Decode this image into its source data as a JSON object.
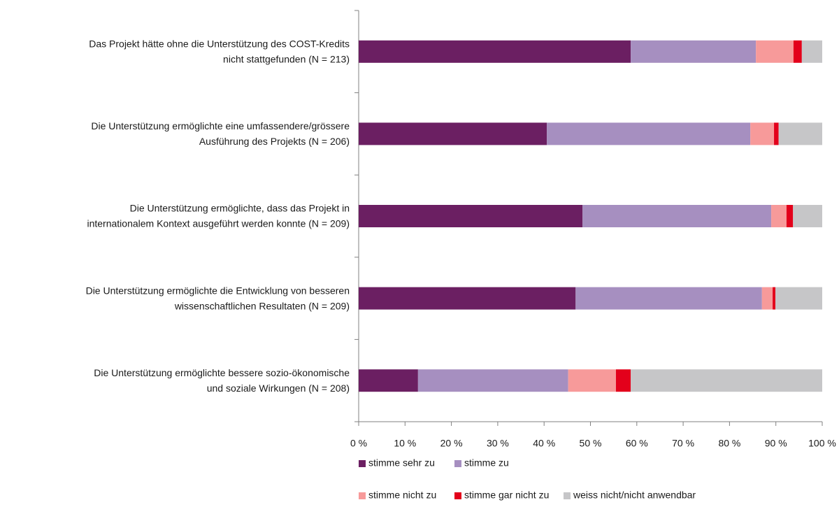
{
  "chart_data": {
    "type": "stacked-bar-horizontal",
    "categories": [
      [
        "Das Projekt hätte ohne die Unterstützung des COST-Kredits",
        "nicht stattgefunden (N = 213)"
      ],
      [
        "Die Unterstützung ermöglichte eine umfassendere/grössere",
        "Ausführung des Projekts (N = 206)"
      ],
      [
        "Die Unterstützung ermöglichte, dass das Projekt in",
        "internationalem Kontext ausgeführt werden konnte (N = 209)"
      ],
      [
        "Die Unterstützung ermöglichte die Entwicklung von besseren",
        "wissenschaftlichen Resultaten (N = 209)"
      ],
      [
        "Die Unterstützung ermöglichte bessere sozio-ökonomische",
        "und soziale Wirkungen (N = 208)"
      ]
    ],
    "series": [
      {
        "name": "stimme sehr zu",
        "color": "#6b1f62",
        "values": [
          58.7,
          40.6,
          48.3,
          46.8,
          12.8
        ]
      },
      {
        "name": "stimme zu",
        "color": "#a68fc0",
        "values": [
          27.0,
          43.9,
          40.7,
          40.2,
          32.4
        ]
      },
      {
        "name": "stimme nicht zu",
        "color": "#f79a9a",
        "values": [
          8.1,
          5.1,
          3.3,
          2.3,
          10.3
        ]
      },
      {
        "name": "stimme gar nicht zu",
        "color": "#e3001b",
        "values": [
          1.8,
          1.0,
          1.4,
          0.6,
          3.2
        ]
      },
      {
        "name": "weiss nicht/nicht anwendbar",
        "color": "#c6c6c8",
        "values": [
          4.4,
          9.4,
          6.3,
          10.1,
          41.3
        ]
      }
    ],
    "xlim": [
      0,
      100
    ],
    "xticks": [
      {
        "value": 0,
        "label": "0 %"
      },
      {
        "value": 10,
        "label": "10 %"
      },
      {
        "value": 20,
        "label": "20 %"
      },
      {
        "value": 30,
        "label": "30 %"
      },
      {
        "value": 40,
        "label": "40 %"
      },
      {
        "value": 50,
        "label": "50 %"
      },
      {
        "value": 60,
        "label": "60 %"
      },
      {
        "value": 70,
        "label": "70 %"
      },
      {
        "value": 80,
        "label": "80 %"
      },
      {
        "value": 90,
        "label": "90 %"
      },
      {
        "value": 100,
        "label": "100 %"
      }
    ]
  }
}
